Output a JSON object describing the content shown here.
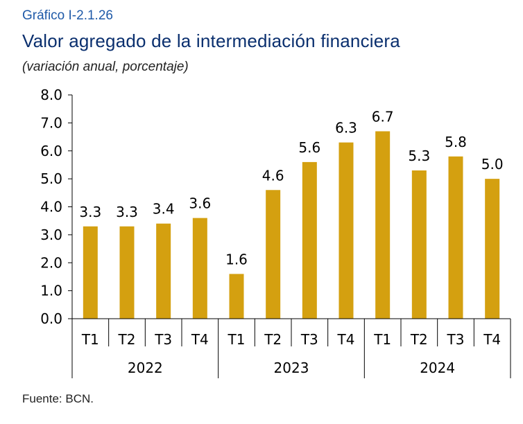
{
  "header": {
    "label": "Gráfico I-2.1.26",
    "title": "Valor agregado de la intermediación financiera",
    "subtitle": "(variación anual, porcentaje)"
  },
  "footer": {
    "source": "Fuente: BCN."
  },
  "chart_data": {
    "type": "bar",
    "bar_color": "#d4a010",
    "categories": [
      "T1",
      "T2",
      "T3",
      "T4",
      "T1",
      "T2",
      "T3",
      "T4",
      "T1",
      "T2",
      "T3",
      "T4"
    ],
    "groups": [
      {
        "label": "2022",
        "count": 4
      },
      {
        "label": "2023",
        "count": 4
      },
      {
        "label": "2024",
        "count": 4
      }
    ],
    "values": [
      3.3,
      3.3,
      3.4,
      3.6,
      1.6,
      4.6,
      5.6,
      6.3,
      6.7,
      5.3,
      5.8,
      5.0
    ],
    "data_labels": [
      "3.3",
      "3.3",
      "3.4",
      "3.6",
      "1.6",
      "4.6",
      "5.6",
      "6.3",
      "6.7",
      "5.3",
      "5.8",
      "5.0"
    ],
    "ylim": [
      0,
      8
    ],
    "yticks": [
      "0.0",
      "1.0",
      "2.0",
      "3.0",
      "4.0",
      "5.0",
      "6.0",
      "7.0",
      "8.0"
    ],
    "xlabel": "",
    "ylabel": "",
    "grid": false,
    "legend": false
  }
}
